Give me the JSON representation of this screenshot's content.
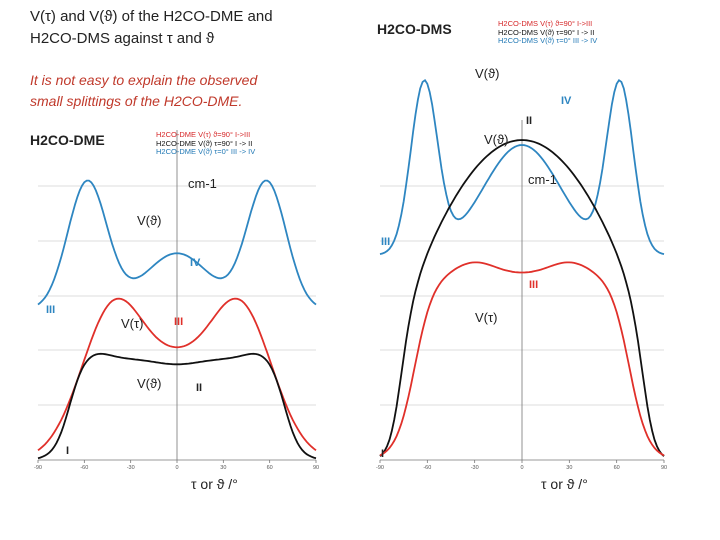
{
  "title_line1": "V(τ) and V(ϑ) of the H2CO-DME and",
  "title_line2": "H2CO-DMS against τ and ϑ",
  "note_line1": "It is not easy to explain the observed",
  "note_line2": "small splittings of the H2CO-DME.",
  "left_panel": {
    "name": "H2CO-DME",
    "legend": [
      {
        "text": "H2CO-DME V(τ)  ϑ=90°   I->III",
        "color": "#d62728"
      },
      {
        "text": "H2CO-DME V(ϑ)  τ=90°   I -> II",
        "color": "#111111"
      },
      {
        "text": "H2CO-DME V(ϑ)  τ=0°    III -> IV",
        "color": "#1f77b4"
      }
    ],
    "unit": "cm-1",
    "curve_labels": {
      "blue": "V(ϑ)",
      "red": "V(τ)",
      "black": "V(ϑ)"
    },
    "roman": {
      "I": "I",
      "II": "II",
      "III": "III",
      "IV": "IV"
    },
    "x_label": "τ or ϑ /°",
    "x_ticks": [
      "-90",
      "-60",
      "-30",
      "0",
      "30",
      "60",
      "90"
    ]
  },
  "right_panel": {
    "name": "H2CO-DMS",
    "legend": [
      {
        "text": "H2CO-DMS V(τ)  ϑ=90°   I->III",
        "color": "#d62728"
      },
      {
        "text": "H2CO-DMS V(ϑ)  τ=90°   I -> II",
        "color": "#111111"
      },
      {
        "text": "H2CO-DMS V(ϑ)  τ=0°    III -> IV",
        "color": "#1f77b4"
      }
    ],
    "unit": "cm-1",
    "curve_labels": {
      "blue": "V(ϑ)",
      "black": "V(ϑ)",
      "red": "V(τ)"
    },
    "roman": {
      "I": "I",
      "II": "II",
      "III": "III",
      "IV": "IV"
    },
    "x_label": "τ or ϑ /°",
    "x_ticks": [
      "-90",
      "-60",
      "-30",
      "0",
      "30",
      "60",
      "90"
    ]
  },
  "colors": {
    "blue": "#2e86c1",
    "red": "#e0302a",
    "black": "#111111",
    "note": "#c0392b"
  }
}
